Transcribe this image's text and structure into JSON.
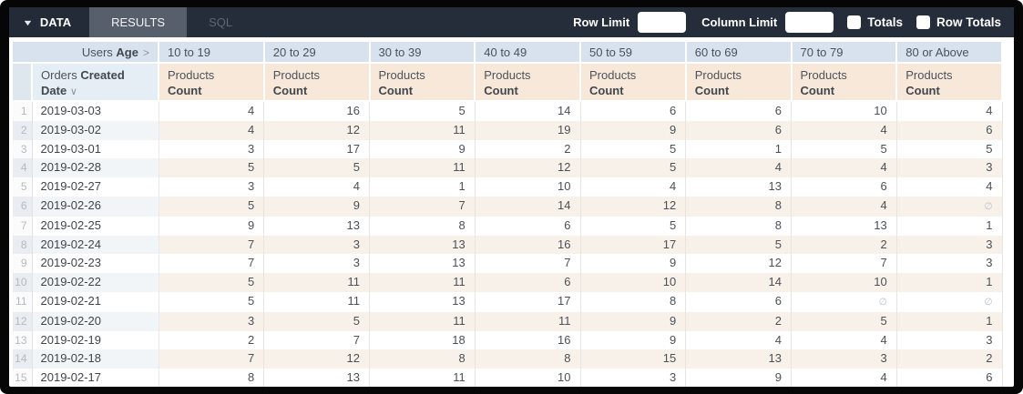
{
  "toolbar": {
    "data_tab": "DATA",
    "results_tab": "RESULTS",
    "sql_tab": "SQL",
    "row_limit_label": "Row Limit",
    "row_limit_value": "",
    "column_limit_label": "Column Limit",
    "column_limit_value": "",
    "totals_label": "Totals",
    "row_totals_label": "Row Totals",
    "totals_checked": false,
    "row_totals_checked": false
  },
  "table": {
    "pivot_dimension": {
      "prefix": "Users",
      "bold": "Age",
      "chevron": ">"
    },
    "row_dimension": {
      "prefix": "Orders",
      "bold": "Created Date",
      "sort_chevron": "∨"
    },
    "measure": {
      "prefix": "Products",
      "bold": "Count"
    },
    "pivot_values": [
      "10 to 19",
      "20 to 29",
      "30 to 39",
      "40 to 49",
      "50 to 59",
      "60 to 69",
      "70 to 79",
      "80 or Above"
    ],
    "null_symbol": "∅",
    "rows": [
      {
        "num": 1,
        "date": "2019-03-03",
        "values": [
          4,
          16,
          5,
          14,
          6,
          6,
          10,
          4
        ]
      },
      {
        "num": 2,
        "date": "2019-03-02",
        "values": [
          4,
          12,
          11,
          19,
          9,
          6,
          4,
          6
        ]
      },
      {
        "num": 3,
        "date": "2019-03-01",
        "values": [
          3,
          17,
          9,
          2,
          5,
          1,
          5,
          5
        ]
      },
      {
        "num": 4,
        "date": "2019-02-28",
        "values": [
          5,
          5,
          11,
          12,
          5,
          4,
          4,
          3
        ]
      },
      {
        "num": 5,
        "date": "2019-02-27",
        "values": [
          3,
          4,
          1,
          10,
          4,
          13,
          6,
          4
        ]
      },
      {
        "num": 6,
        "date": "2019-02-26",
        "values": [
          5,
          9,
          7,
          14,
          12,
          8,
          4,
          null
        ]
      },
      {
        "num": 7,
        "date": "2019-02-25",
        "values": [
          9,
          13,
          8,
          6,
          5,
          8,
          13,
          1
        ]
      },
      {
        "num": 8,
        "date": "2019-02-24",
        "values": [
          7,
          3,
          13,
          16,
          17,
          5,
          2,
          3
        ]
      },
      {
        "num": 9,
        "date": "2019-02-23",
        "values": [
          7,
          3,
          13,
          7,
          9,
          12,
          7,
          3
        ]
      },
      {
        "num": 10,
        "date": "2019-02-22",
        "values": [
          5,
          11,
          11,
          6,
          10,
          14,
          10,
          1
        ]
      },
      {
        "num": 11,
        "date": "2019-02-21",
        "values": [
          5,
          11,
          13,
          17,
          8,
          6,
          null,
          null
        ]
      },
      {
        "num": 12,
        "date": "2019-02-20",
        "values": [
          3,
          5,
          11,
          11,
          9,
          2,
          5,
          1
        ]
      },
      {
        "num": 13,
        "date": "2019-02-19",
        "values": [
          2,
          7,
          18,
          16,
          9,
          4,
          4,
          3
        ]
      },
      {
        "num": 14,
        "date": "2019-02-18",
        "values": [
          7,
          12,
          8,
          8,
          15,
          13,
          3,
          2
        ]
      },
      {
        "num": 15,
        "date": "2019-02-17",
        "values": [
          8,
          13,
          11,
          10,
          3,
          9,
          4,
          6
        ]
      }
    ]
  },
  "colors": {
    "topbar_bg": "#252c3a",
    "results_tab_bg": "#575f6d",
    "header_pivot_bg": "#d7e2ee",
    "header_dimension_bg": "#e5edf5",
    "header_measure_bg": "#f8e8d9",
    "stripe_date_bg": "#f2f5f8",
    "stripe_value_bg": "#f8f1ea"
  }
}
